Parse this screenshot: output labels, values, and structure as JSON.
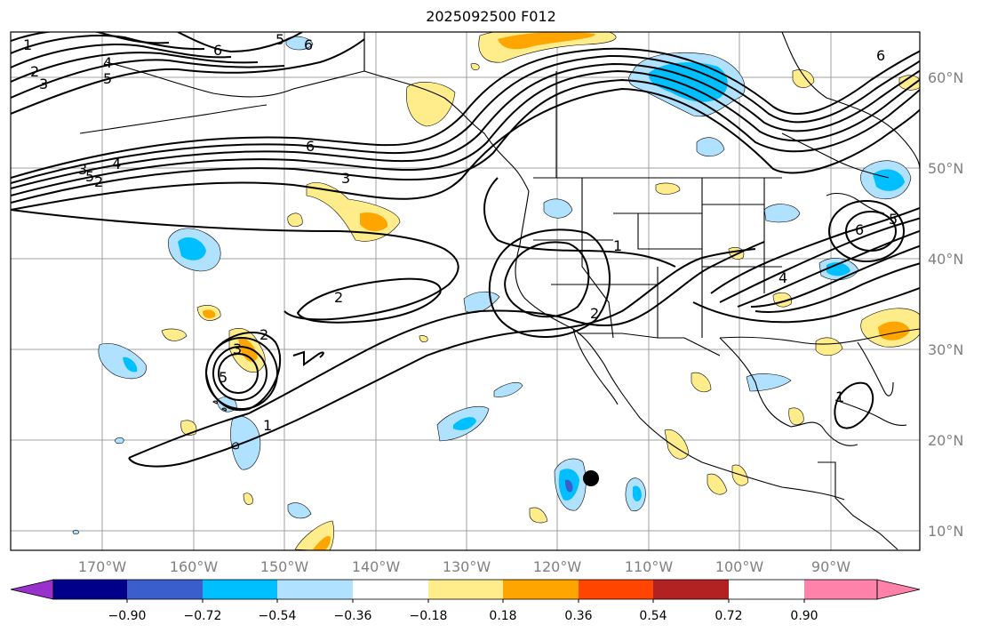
{
  "title": "2025092500 F012",
  "map": {
    "lon_labels": [
      "170°W",
      "160°W",
      "150°W",
      "140°W",
      "130°W",
      "120°W",
      "110°W",
      "100°W",
      "90°W"
    ],
    "lat_labels": [
      "60°N",
      "50°N",
      "40°N",
      "30°N",
      "20°N",
      "10°N"
    ],
    "contour_labels": [
      "1",
      "2",
      "3",
      "4",
      "5",
      "6",
      "5",
      "6",
      "2",
      "3",
      "4",
      "5",
      "6",
      "3",
      "6",
      "2",
      "2",
      "3",
      "5",
      "1",
      "1",
      "2",
      "4",
      "5",
      "6",
      "1"
    ],
    "marker": "black-dot"
  },
  "colorbar": {
    "ticks": [
      "−0.90",
      "−0.72",
      "−0.54",
      "−0.36",
      "−0.18",
      "0.18",
      "0.36",
      "0.54",
      "0.72",
      "0.90"
    ],
    "colors": [
      "#9932cc",
      "#00008b",
      "#3a5fcd",
      "#00bfff",
      "#b0e2ff",
      "#ffffff",
      "#ffec8b",
      "#ffa500",
      "#ff4500",
      "#b22222",
      "#ff82ab"
    ]
  }
}
